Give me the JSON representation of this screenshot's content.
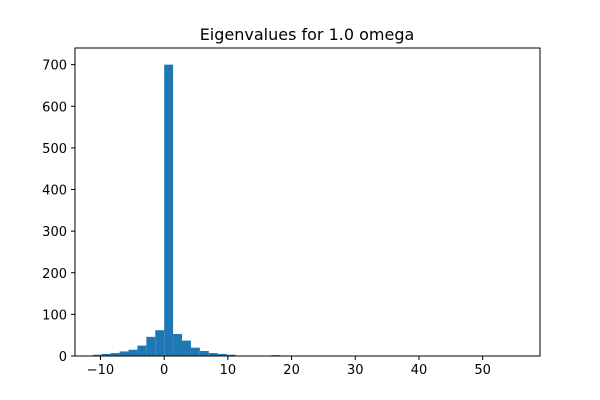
{
  "chart_data": {
    "type": "histogram",
    "title": "Eigenvalues for 1.0 omega",
    "xlabel": "",
    "ylabel": "",
    "xlim": [
      -14,
      59
    ],
    "ylim": [
      0,
      740
    ],
    "bar_color": "#1f77b4",
    "x_ticks": [
      -10,
      0,
      10,
      20,
      30,
      40,
      50
    ],
    "y_ticks": [
      0,
      100,
      200,
      300,
      400,
      500,
      600,
      700
    ],
    "bin_width": 1.4,
    "bins": [
      {
        "x0": -11.2,
        "count": 3
      },
      {
        "x0": -9.8,
        "count": 5
      },
      {
        "x0": -8.4,
        "count": 7
      },
      {
        "x0": -7.0,
        "count": 11
      },
      {
        "x0": -5.6,
        "count": 15
      },
      {
        "x0": -4.2,
        "count": 25
      },
      {
        "x0": -2.8,
        "count": 46
      },
      {
        "x0": -1.4,
        "count": 62
      },
      {
        "x0": 0.0,
        "count": 700
      },
      {
        "x0": 1.4,
        "count": 53
      },
      {
        "x0": 2.8,
        "count": 37
      },
      {
        "x0": 4.2,
        "count": 20
      },
      {
        "x0": 5.6,
        "count": 12
      },
      {
        "x0": 7.0,
        "count": 7
      },
      {
        "x0": 8.4,
        "count": 5
      },
      {
        "x0": 9.8,
        "count": 3
      },
      {
        "x0": 11.2,
        "count": 1
      },
      {
        "x0": 12.6,
        "count": 1
      },
      {
        "x0": 16.8,
        "count": 2
      },
      {
        "x0": 18.2,
        "count": 1
      }
    ]
  }
}
